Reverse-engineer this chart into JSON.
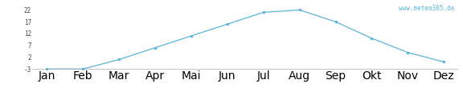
{
  "months": [
    "Jan",
    "Feb",
    "Mar",
    "Apr",
    "Mai",
    "Jun",
    "Jul",
    "Aug",
    "Sep",
    "Okt",
    "Nov",
    "Dez"
  ],
  "values": [
    -3,
    -3,
    1,
    6,
    11,
    16,
    21,
    22,
    17,
    10,
    4,
    0
  ],
  "line_color": "#5ab4d6",
  "marker_color": "#5ab4d6",
  "background_color": "#ffffff",
  "yticks": [
    -3,
    2,
    7,
    12,
    17,
    22
  ],
  "ylim": [
    -5.5,
    25
  ],
  "watermark": "www.meteo365.de",
  "watermark_color": "#5ab4d6",
  "figsize": [
    5.76,
    1.2
  ],
  "dpi": 100
}
